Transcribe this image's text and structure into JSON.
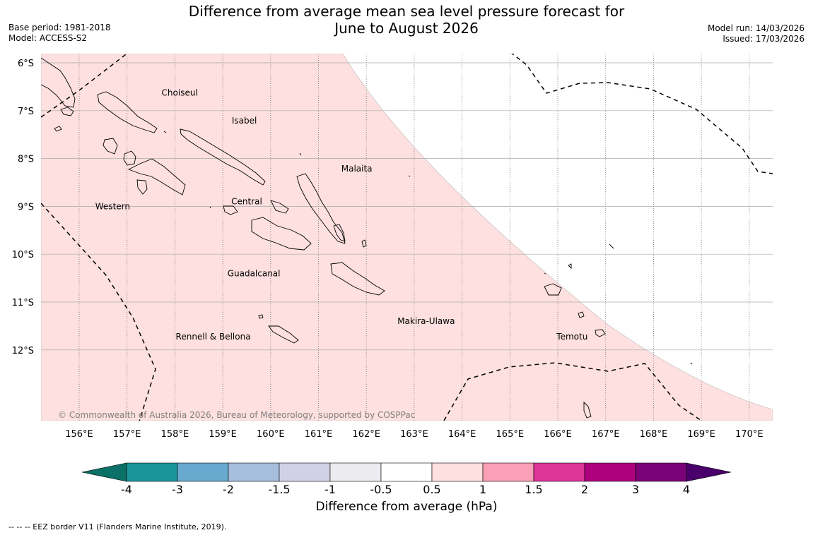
{
  "title_line1": "Difference from average mean sea level pressure forecast for",
  "title_line2": "June to August 2026",
  "meta": {
    "base_period": "Base period: 1981-2018",
    "model": "Model: ACCESS-S2",
    "model_run": "Model run: 14/03/2026",
    "issued": "Issued: 17/03/2026"
  },
  "map": {
    "lat_labels": [
      "6°S",
      "7°S",
      "8°S",
      "9°S",
      "10°S",
      "11°S",
      "12°S"
    ],
    "lat_values": [
      6,
      7,
      8,
      9,
      10,
      11,
      12
    ],
    "lon_labels": [
      "156°E",
      "157°E",
      "158°E",
      "159°E",
      "160°E",
      "161°E",
      "162°E",
      "163°E",
      "164°E",
      "165°E",
      "166°E",
      "167°E",
      "168°E",
      "169°E",
      "170°E"
    ],
    "lon_values": [
      156,
      157,
      158,
      159,
      160,
      161,
      162,
      163,
      164,
      165,
      166,
      167,
      168,
      169,
      170
    ],
    "regions": [
      {
        "name": "Choiseul",
        "lon": 158.1,
        "lat": 6.63
      },
      {
        "name": "Isabel",
        "lon": 159.45,
        "lat": 7.21
      },
      {
        "name": "Malaita",
        "lon": 161.8,
        "lat": 8.21
      },
      {
        "name": "Central",
        "lon": 159.5,
        "lat": 8.9
      },
      {
        "name": "Western",
        "lon": 156.7,
        "lat": 9.0
      },
      {
        "name": "Guadalcanal",
        "lon": 159.65,
        "lat": 10.4
      },
      {
        "name": "Makira-Ulawa",
        "lon": 163.25,
        "lat": 11.4
      },
      {
        "name": "Rennell & Bellona",
        "lon": 158.8,
        "lat": 11.72
      },
      {
        "name": "Temotu",
        "lon": 166.3,
        "lat": 11.72
      }
    ],
    "copyright": "© Commonwealth of Australia 2026, Bureau of Meteorology, supported by COSPPac",
    "fill_color": "#fde0df",
    "forecast_category": "0.5 to 1 hPa"
  },
  "colorbar": {
    "title": "Difference from average (hPa)",
    "tick_labels": [
      "-4",
      "-3",
      "-2",
      "-1.5",
      "-1",
      "-0.5",
      "0.5",
      "1",
      "1.5",
      "2",
      "3",
      "4"
    ],
    "colors": [
      "#0b7067",
      "#1b9599",
      "#67a9cf",
      "#a6bddb",
      "#d0d1e6",
      "#ececf0",
      "#ffffff",
      "#fde0df",
      "#fa9fb5",
      "#dd3497",
      "#ae017e",
      "#7a0177",
      "#49006a"
    ]
  },
  "footnote": "--  --  -- EEZ border V11 (Flanders Marine Institute, 2019)."
}
